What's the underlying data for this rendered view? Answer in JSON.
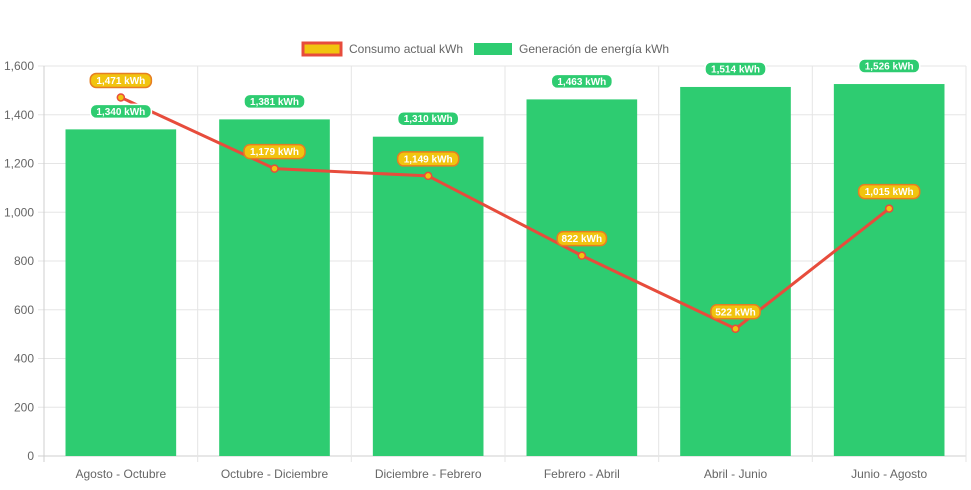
{
  "chart_data": {
    "type": "bar",
    "categories": [
      "Agosto - Octubre",
      "Octubre - Diciembre",
      "Diciembre - Febrero",
      "Febrero - Abril",
      "Abril - Junio",
      "Junio - Agosto"
    ],
    "series": [
      {
        "name": "Consumo actual kWh",
        "type": "line",
        "values": [
          1471,
          1179,
          1149,
          822,
          522,
          1015
        ],
        "labels": [
          "1,471 kWh",
          "1,179 kWh",
          "1,149 kWh",
          "822 kWh",
          "522 kWh",
          "1,015 kWh"
        ],
        "color": "#e74c3c",
        "fill": "#f1c40f"
      },
      {
        "name": "Generación de energía kWh",
        "type": "bar",
        "values": [
          1340,
          1381,
          1310,
          1463,
          1514,
          1526
        ],
        "labels": [
          "1,340 kWh",
          "1,381 kWh",
          "1,310 kWh",
          "1,463 kWh",
          "1,514 kWh",
          "1,526 kWh"
        ],
        "color": "#2ecc71"
      }
    ],
    "ylim": [
      0,
      1600
    ],
    "yticks": [
      "0",
      "200",
      "400",
      "600",
      "800",
      "1,000",
      "1,200",
      "1,400",
      "1,600"
    ],
    "grid": true,
    "legend_position": "top"
  }
}
